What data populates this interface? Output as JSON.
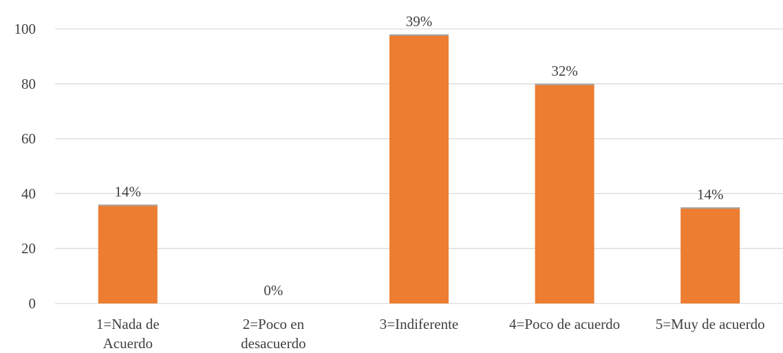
{
  "chart_data": {
    "type": "bar",
    "categories": [
      [
        "1=Nada de",
        "Acuerdo"
      ],
      [
        "2=Poco en",
        "desacuerdo"
      ],
      [
        "3=Indiferente"
      ],
      [
        "4=Poco de acuerdo"
      ],
      [
        "5=Muy de acuerdo"
      ]
    ],
    "values": [
      36,
      0,
      98,
      80,
      35
    ],
    "data_labels": [
      "14%",
      "0%",
      "39%",
      "32%",
      "14%"
    ],
    "ylim": [
      0,
      100
    ],
    "yticks": [
      0,
      20,
      40,
      60,
      80,
      100
    ],
    "bar_color": "#ed7d31",
    "bar_cap_color": "#a5a5a5",
    "grid": true,
    "legend": "none"
  }
}
